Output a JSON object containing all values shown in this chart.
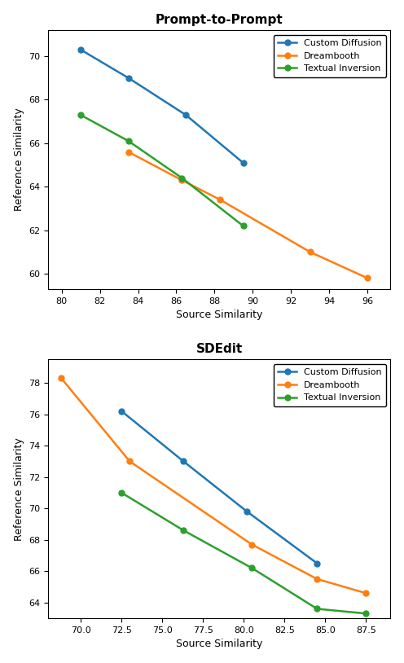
{
  "plot1": {
    "title": "Prompt-to-Prompt",
    "xlabel": "Source Similarity",
    "ylabel": "Reference Similarity",
    "custom_diffusion": {
      "x": [
        81.0,
        83.5,
        86.5,
        89.5
      ],
      "y": [
        70.3,
        69.0,
        67.3,
        65.1
      ],
      "color": "#1f77b4",
      "label": "Custom Diffusion"
    },
    "dreambooth": {
      "x": [
        83.5,
        86.3,
        88.3,
        93.0,
        96.0
      ],
      "y": [
        65.6,
        64.3,
        63.4,
        61.0,
        59.8
      ],
      "color": "#ff7f0e",
      "label": "Dreambooth"
    },
    "textual_inversion": {
      "x": [
        81.0,
        83.5,
        86.3,
        89.5
      ],
      "y": [
        67.3,
        66.1,
        64.4,
        62.2
      ],
      "color": "#2ca02c",
      "label": "Textual Inversion"
    },
    "xlim": [
      79.3,
      97.2
    ],
    "ylim": [
      59.3,
      71.2
    ],
    "xticks": [
      80,
      82,
      84,
      86,
      88,
      90,
      92,
      94,
      96
    ],
    "yticks": [
      60,
      62,
      64,
      66,
      68,
      70
    ]
  },
  "plot2": {
    "title": "SDEdit",
    "xlabel": "Source Similarity",
    "ylabel": "Reference Similarity",
    "custom_diffusion": {
      "x": [
        72.5,
        76.3,
        80.2,
        84.5
      ],
      "y": [
        76.2,
        73.0,
        69.8,
        66.5
      ],
      "color": "#1f77b4",
      "label": "Custom Diffusion"
    },
    "dreambooth": {
      "x": [
        68.8,
        73.0,
        80.5,
        84.5,
        87.5
      ],
      "y": [
        78.3,
        73.0,
        67.7,
        65.5,
        64.6
      ],
      "color": "#ff7f0e",
      "label": "Dreambooth"
    },
    "textual_inversion": {
      "x": [
        72.5,
        76.3,
        80.5,
        84.5,
        87.5
      ],
      "y": [
        71.0,
        68.6,
        66.2,
        63.6,
        63.3
      ],
      "color": "#2ca02c",
      "label": "Textual Inversion"
    },
    "xlim": [
      68.0,
      89.0
    ],
    "ylim": [
      63.0,
      79.5
    ],
    "xticks": [
      70.0,
      72.5,
      75.0,
      77.5,
      80.0,
      82.5,
      85.0,
      87.5
    ],
    "yticks": [
      64,
      66,
      68,
      70,
      72,
      74,
      76,
      78
    ]
  },
  "marker": "o",
  "markersize": 5,
  "linewidth": 1.8,
  "title_fontsize": 11,
  "label_fontsize": 9,
  "tick_fontsize": 8,
  "legend_fontsize": 8
}
